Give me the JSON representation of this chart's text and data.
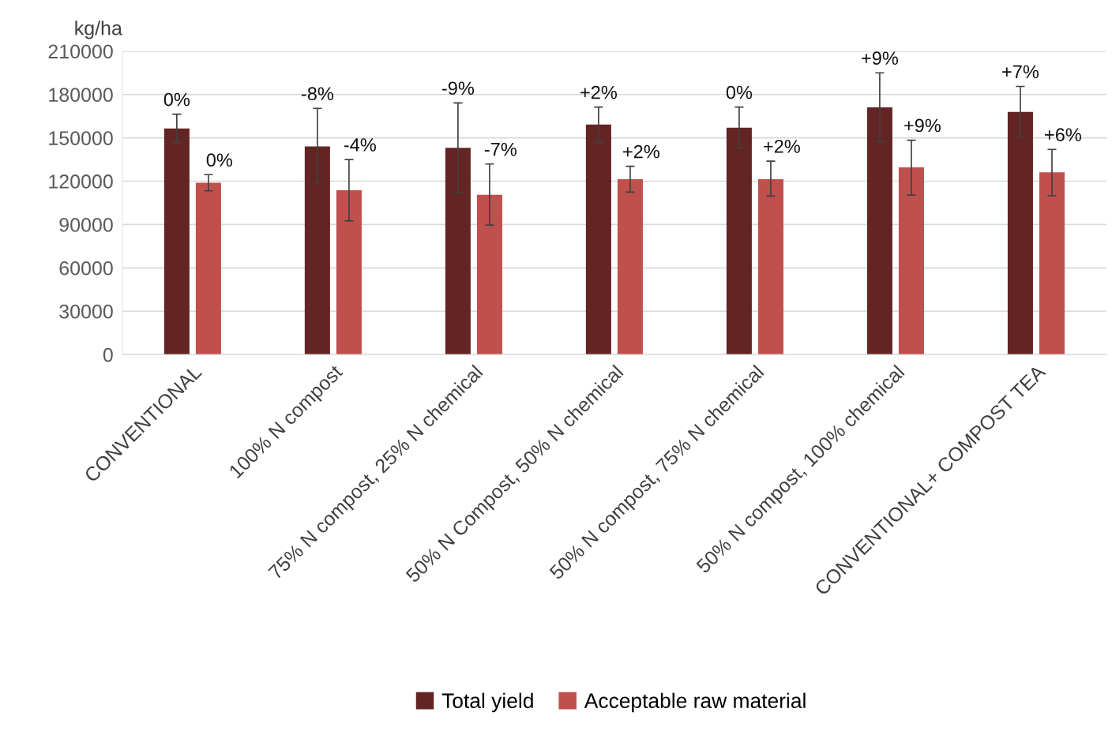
{
  "chart_data": {
    "type": "bar",
    "ylabel": "kg/ha",
    "categories": [
      "CONVENTIONAL",
      "100% N compost",
      "75% N compost, 25% N chemical",
      "50% N Compost, 50% N chemical",
      "50% N compost, 75% N chemical",
      "50% N compost, 100% chemical",
      "CONVENTIONAL+ COMPOST TEA"
    ],
    "series": [
      {
        "name": "Total yield",
        "color": "#632523",
        "values": [
          156500,
          144000,
          143100,
          159200,
          157000,
          171100,
          167900
        ],
        "errors": [
          [
            146700,
            166400
          ],
          [
            118900,
            170400
          ],
          [
            112200,
            174200
          ],
          [
            146700,
            171300
          ],
          [
            143100,
            171300
          ],
          [
            147100,
            195000
          ],
          [
            150200,
            185600
          ]
        ]
      },
      {
        "name": "Acceptable raw material",
        "color": "#c0504d",
        "values": [
          118900,
          113700,
          110600,
          121400,
          121400,
          129600,
          126100
        ],
        "errors": [
          [
            113300,
            124500
          ],
          [
            92500,
            135000
          ],
          [
            89600,
            131900
          ],
          [
            112400,
            130300
          ],
          [
            109700,
            133900
          ],
          [
            110400,
            148400
          ],
          [
            109900,
            142000
          ]
        ]
      }
    ],
    "annotations": [
      "0%",
      "-8%",
      "-9%",
      "+2%",
      "0%",
      "+9%",
      "+7%",
      "0%",
      "-4%",
      "-7%",
      "+2%",
      "+2%",
      "+9%",
      "+6%"
    ],
    "ylim": [
      0,
      210000
    ],
    "yticks": [
      0,
      30000,
      60000,
      90000,
      120000,
      150000,
      180000,
      210000
    ],
    "grid": "y",
    "legend": "bottom"
  }
}
